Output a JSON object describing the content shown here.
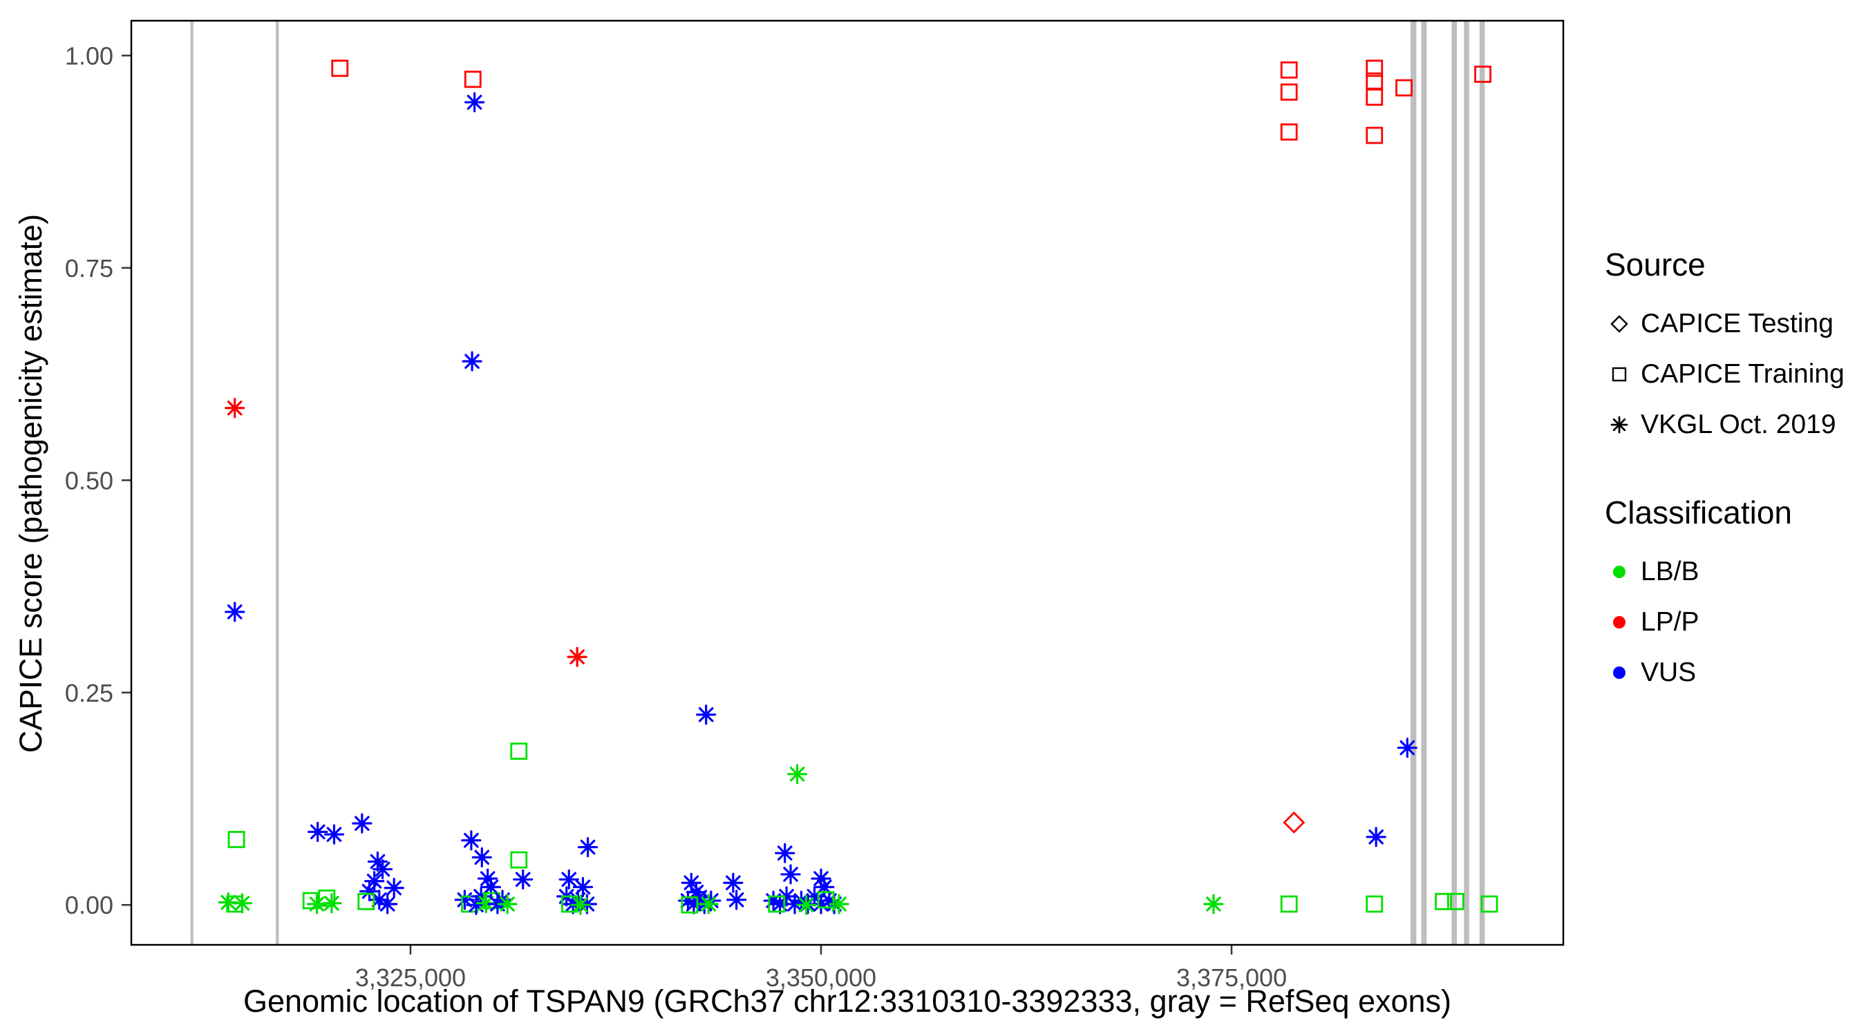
{
  "chart_data": {
    "type": "scatter",
    "title": "",
    "xlabel": "Genomic location of TSPAN9 (GRCh37 chr12:3310310-3392333, gray = RefSeq exons)",
    "ylabel": "CAPICE score (pathogenicity estimate)",
    "xlim": [
      3308000,
      3395200
    ],
    "ylim": [
      -0.047,
      1.041
    ],
    "grid": "off",
    "x_ticks": [
      {
        "value": 3325000,
        "label": "3,325,000"
      },
      {
        "value": 3350000,
        "label": "3,350,000"
      },
      {
        "value": 3375000,
        "label": "3,375,000"
      }
    ],
    "y_ticks": [
      {
        "value": 0.0,
        "label": "0.00"
      },
      {
        "value": 0.25,
        "label": "0.25"
      },
      {
        "value": 0.5,
        "label": "0.50"
      },
      {
        "value": 0.75,
        "label": "0.75"
      },
      {
        "value": 1.0,
        "label": "1.00"
      }
    ],
    "colors": {
      "LB/B": "#00E000",
      "LP/P": "#FF0000",
      "VUS": "#0000FF",
      "exon": "#BEBEBE",
      "tick_text": "#4D4D4D",
      "panel_border": "#000000"
    },
    "legend": {
      "source": {
        "title": "Source",
        "items": [
          {
            "label": "CAPICE Testing",
            "symbol": "diamond"
          },
          {
            "label": "CAPICE Training",
            "symbol": "square"
          },
          {
            "label": "VKGL Oct. 2019",
            "symbol": "asterisk"
          }
        ]
      },
      "classification": {
        "title": "Classification",
        "items": [
          {
            "label": "LB/B",
            "color": "#00E000"
          },
          {
            "label": "LP/P",
            "color": "#FF0000"
          },
          {
            "label": "VUS",
            "color": "#0000FF"
          }
        ]
      }
    },
    "exons": [
      {
        "start": 3311600,
        "end": 3311780
      },
      {
        "start": 3316800,
        "end": 3316980
      },
      {
        "start": 3385900,
        "end": 3386250
      },
      {
        "start": 3386550,
        "end": 3386880
      },
      {
        "start": 3388400,
        "end": 3388720
      },
      {
        "start": 3389150,
        "end": 3389470
      },
      {
        "start": 3390100,
        "end": 3390420
      }
    ],
    "points": [
      {
        "x": 3314300,
        "y": 0.585,
        "source": "vkgl",
        "cls": "LP/P"
      },
      {
        "x": 3314300,
        "y": 0.345,
        "source": "vkgl",
        "cls": "VUS"
      },
      {
        "x": 3314400,
        "y": 0.077,
        "source": "training",
        "cls": "LB/B"
      },
      {
        "x": 3313900,
        "y": 0.003,
        "source": "vkgl",
        "cls": "LB/B"
      },
      {
        "x": 3314300,
        "y": 0.001,
        "source": "training",
        "cls": "LB/B"
      },
      {
        "x": 3314750,
        "y": 0.002,
        "source": "vkgl",
        "cls": "LB/B"
      },
      {
        "x": 3320700,
        "y": 0.985,
        "source": "training",
        "cls": "LP/P"
      },
      {
        "x": 3319350,
        "y": 0.086,
        "source": "vkgl",
        "cls": "VUS"
      },
      {
        "x": 3320350,
        "y": 0.083,
        "source": "vkgl",
        "cls": "VUS"
      },
      {
        "x": 3318950,
        "y": 0.005,
        "source": "training",
        "cls": "LB/B"
      },
      {
        "x": 3319300,
        "y": 0.001,
        "source": "vkgl",
        "cls": "LB/B"
      },
      {
        "x": 3319900,
        "y": 0.008,
        "source": "training",
        "cls": "LB/B"
      },
      {
        "x": 3320200,
        "y": 0.002,
        "source": "vkgl",
        "cls": "LB/B"
      },
      {
        "x": 3322050,
        "y": 0.096,
        "source": "vkgl",
        "cls": "VUS"
      },
      {
        "x": 3323000,
        "y": 0.051,
        "source": "vkgl",
        "cls": "VUS"
      },
      {
        "x": 3323300,
        "y": 0.042,
        "source": "vkgl",
        "cls": "VUS"
      },
      {
        "x": 3322500,
        "y": 0.016,
        "source": "vkgl",
        "cls": "VUS"
      },
      {
        "x": 3322800,
        "y": 0.028,
        "source": "vkgl",
        "cls": "VUS"
      },
      {
        "x": 3323100,
        "y": 0.006,
        "source": "vkgl",
        "cls": "VUS"
      },
      {
        "x": 3323600,
        "y": 0.001,
        "source": "vkgl",
        "cls": "VUS"
      },
      {
        "x": 3324000,
        "y": 0.02,
        "source": "vkgl",
        "cls": "VUS"
      },
      {
        "x": 3322300,
        "y": 0.004,
        "source": "training",
        "cls": "LB/B"
      },
      {
        "x": 3328800,
        "y": 0.972,
        "source": "training",
        "cls": "LP/P"
      },
      {
        "x": 3328900,
        "y": 0.945,
        "source": "vkgl",
        "cls": "VUS"
      },
      {
        "x": 3328750,
        "y": 0.64,
        "source": "vkgl",
        "cls": "VUS"
      },
      {
        "x": 3328700,
        "y": 0.076,
        "source": "vkgl",
        "cls": "VUS"
      },
      {
        "x": 3329350,
        "y": 0.056,
        "source": "vkgl",
        "cls": "VUS"
      },
      {
        "x": 3329700,
        "y": 0.031,
        "source": "vkgl",
        "cls": "VUS"
      },
      {
        "x": 3329900,
        "y": 0.021,
        "source": "vkgl",
        "cls": "VUS"
      },
      {
        "x": 3328300,
        "y": 0.006,
        "source": "vkgl",
        "cls": "VUS"
      },
      {
        "x": 3328600,
        "y": 0.001,
        "source": "training",
        "cls": "LB/B"
      },
      {
        "x": 3329000,
        "y": 0.0,
        "source": "vkgl",
        "cls": "VUS"
      },
      {
        "x": 3329300,
        "y": 0.01,
        "source": "vkgl",
        "cls": "VUS"
      },
      {
        "x": 3329600,
        "y": 0.002,
        "source": "vkgl",
        "cls": "LB/B"
      },
      {
        "x": 3329950,
        "y": 0.005,
        "source": "training",
        "cls": "LB/B"
      },
      {
        "x": 3330300,
        "y": 0.001,
        "source": "vkgl",
        "cls": "VUS"
      },
      {
        "x": 3330600,
        "y": 0.006,
        "source": "vkgl",
        "cls": "VUS"
      },
      {
        "x": 3330900,
        "y": 0.001,
        "source": "vkgl",
        "cls": "LB/B"
      },
      {
        "x": 3331600,
        "y": 0.181,
        "source": "training",
        "cls": "LB/B"
      },
      {
        "x": 3331600,
        "y": 0.053,
        "source": "training",
        "cls": "LB/B"
      },
      {
        "x": 3331850,
        "y": 0.03,
        "source": "vkgl",
        "cls": "VUS"
      },
      {
        "x": 3335150,
        "y": 0.292,
        "source": "vkgl",
        "cls": "LP/P"
      },
      {
        "x": 3335800,
        "y": 0.068,
        "source": "vkgl",
        "cls": "VUS"
      },
      {
        "x": 3334650,
        "y": 0.03,
        "source": "vkgl",
        "cls": "VUS"
      },
      {
        "x": 3334500,
        "y": 0.01,
        "source": "vkgl",
        "cls": "VUS"
      },
      {
        "x": 3334900,
        "y": 0.001,
        "source": "vkgl",
        "cls": "VUS"
      },
      {
        "x": 3335200,
        "y": 0.006,
        "source": "vkgl",
        "cls": "VUS"
      },
      {
        "x": 3335500,
        "y": 0.021,
        "source": "vkgl",
        "cls": "VUS"
      },
      {
        "x": 3335750,
        "y": 0.001,
        "source": "vkgl",
        "cls": "VUS"
      },
      {
        "x": 3334700,
        "y": 0.001,
        "source": "training",
        "cls": "LB/B"
      },
      {
        "x": 3335350,
        "y": 0.0,
        "source": "vkgl",
        "cls": "LB/B"
      },
      {
        "x": 3343000,
        "y": 0.224,
        "source": "vkgl",
        "cls": "VUS"
      },
      {
        "x": 3342100,
        "y": 0.026,
        "source": "vkgl",
        "cls": "VUS"
      },
      {
        "x": 3342400,
        "y": 0.015,
        "source": "vkgl",
        "cls": "VUS"
      },
      {
        "x": 3341900,
        "y": 0.005,
        "source": "vkgl",
        "cls": "VUS"
      },
      {
        "x": 3342250,
        "y": 0.001,
        "source": "vkgl",
        "cls": "VUS"
      },
      {
        "x": 3342600,
        "y": 0.009,
        "source": "vkgl",
        "cls": "VUS"
      },
      {
        "x": 3342900,
        "y": 0.001,
        "source": "vkgl",
        "cls": "VUS"
      },
      {
        "x": 3343300,
        "y": 0.005,
        "source": "vkgl",
        "cls": "VUS"
      },
      {
        "x": 3342000,
        "y": 0.0,
        "source": "training",
        "cls": "LB/B"
      },
      {
        "x": 3343150,
        "y": 0.001,
        "source": "vkgl",
        "cls": "LB/B"
      },
      {
        "x": 3344650,
        "y": 0.026,
        "source": "vkgl",
        "cls": "VUS"
      },
      {
        "x": 3344850,
        "y": 0.006,
        "source": "vkgl",
        "cls": "VUS"
      },
      {
        "x": 3348550,
        "y": 0.154,
        "source": "vkgl",
        "cls": "LB/B"
      },
      {
        "x": 3347800,
        "y": 0.061,
        "source": "vkgl",
        "cls": "VUS"
      },
      {
        "x": 3348150,
        "y": 0.036,
        "source": "vkgl",
        "cls": "VUS"
      },
      {
        "x": 3350000,
        "y": 0.031,
        "source": "vkgl",
        "cls": "VUS"
      },
      {
        "x": 3350200,
        "y": 0.021,
        "source": "vkgl",
        "cls": "VUS"
      },
      {
        "x": 3347100,
        "y": 0.005,
        "source": "vkgl",
        "cls": "VUS"
      },
      {
        "x": 3347500,
        "y": 0.001,
        "source": "vkgl",
        "cls": "VUS"
      },
      {
        "x": 3347900,
        "y": 0.01,
        "source": "vkgl",
        "cls": "VUS"
      },
      {
        "x": 3348400,
        "y": 0.001,
        "source": "vkgl",
        "cls": "VUS"
      },
      {
        "x": 3348800,
        "y": 0.005,
        "source": "vkgl",
        "cls": "VUS"
      },
      {
        "x": 3349200,
        "y": 0.001,
        "source": "vkgl",
        "cls": "VUS"
      },
      {
        "x": 3349600,
        "y": 0.01,
        "source": "vkgl",
        "cls": "VUS"
      },
      {
        "x": 3350000,
        "y": 0.001,
        "source": "vkgl",
        "cls": "VUS"
      },
      {
        "x": 3350500,
        "y": 0.005,
        "source": "vkgl",
        "cls": "VUS"
      },
      {
        "x": 3350800,
        "y": 0.001,
        "source": "vkgl",
        "cls": "VUS"
      },
      {
        "x": 3347300,
        "y": 0.001,
        "source": "training",
        "cls": "LB/B"
      },
      {
        "x": 3349100,
        "y": 0.0,
        "source": "vkgl",
        "cls": "LB/B"
      },
      {
        "x": 3350300,
        "y": 0.006,
        "source": "training",
        "cls": "LB/B"
      },
      {
        "x": 3351100,
        "y": 0.001,
        "source": "vkgl",
        "cls": "LB/B"
      },
      {
        "x": 3373900,
        "y": 0.001,
        "source": "vkgl",
        "cls": "LB/B"
      },
      {
        "x": 3378500,
        "y": 0.983,
        "source": "training",
        "cls": "LP/P"
      },
      {
        "x": 3378500,
        "y": 0.957,
        "source": "training",
        "cls": "LP/P"
      },
      {
        "x": 3378500,
        "y": 0.91,
        "source": "training",
        "cls": "LP/P"
      },
      {
        "x": 3378800,
        "y": 0.097,
        "source": "testing",
        "cls": "LP/P"
      },
      {
        "x": 3378500,
        "y": 0.001,
        "source": "training",
        "cls": "LB/B"
      },
      {
        "x": 3383700,
        "y": 0.985,
        "source": "training",
        "cls": "LP/P"
      },
      {
        "x": 3383700,
        "y": 0.97,
        "source": "training",
        "cls": "LP/P"
      },
      {
        "x": 3383700,
        "y": 0.951,
        "source": "training",
        "cls": "LP/P"
      },
      {
        "x": 3383700,
        "y": 0.906,
        "source": "training",
        "cls": "LP/P"
      },
      {
        "x": 3383800,
        "y": 0.08,
        "source": "vkgl",
        "cls": "VUS"
      },
      {
        "x": 3383700,
        "y": 0.001,
        "source": "training",
        "cls": "LB/B"
      },
      {
        "x": 3385500,
        "y": 0.962,
        "source": "training",
        "cls": "LP/P"
      },
      {
        "x": 3385700,
        "y": 0.185,
        "source": "vkgl",
        "cls": "VUS"
      },
      {
        "x": 3387900,
        "y": 0.004,
        "source": "training",
        "cls": "LB/B"
      },
      {
        "x": 3388650,
        "y": 0.004,
        "source": "training",
        "cls": "LB/B"
      },
      {
        "x": 3390300,
        "y": 0.978,
        "source": "training",
        "cls": "LP/P"
      },
      {
        "x": 3390700,
        "y": 0.001,
        "source": "training",
        "cls": "LB/B"
      }
    ]
  }
}
